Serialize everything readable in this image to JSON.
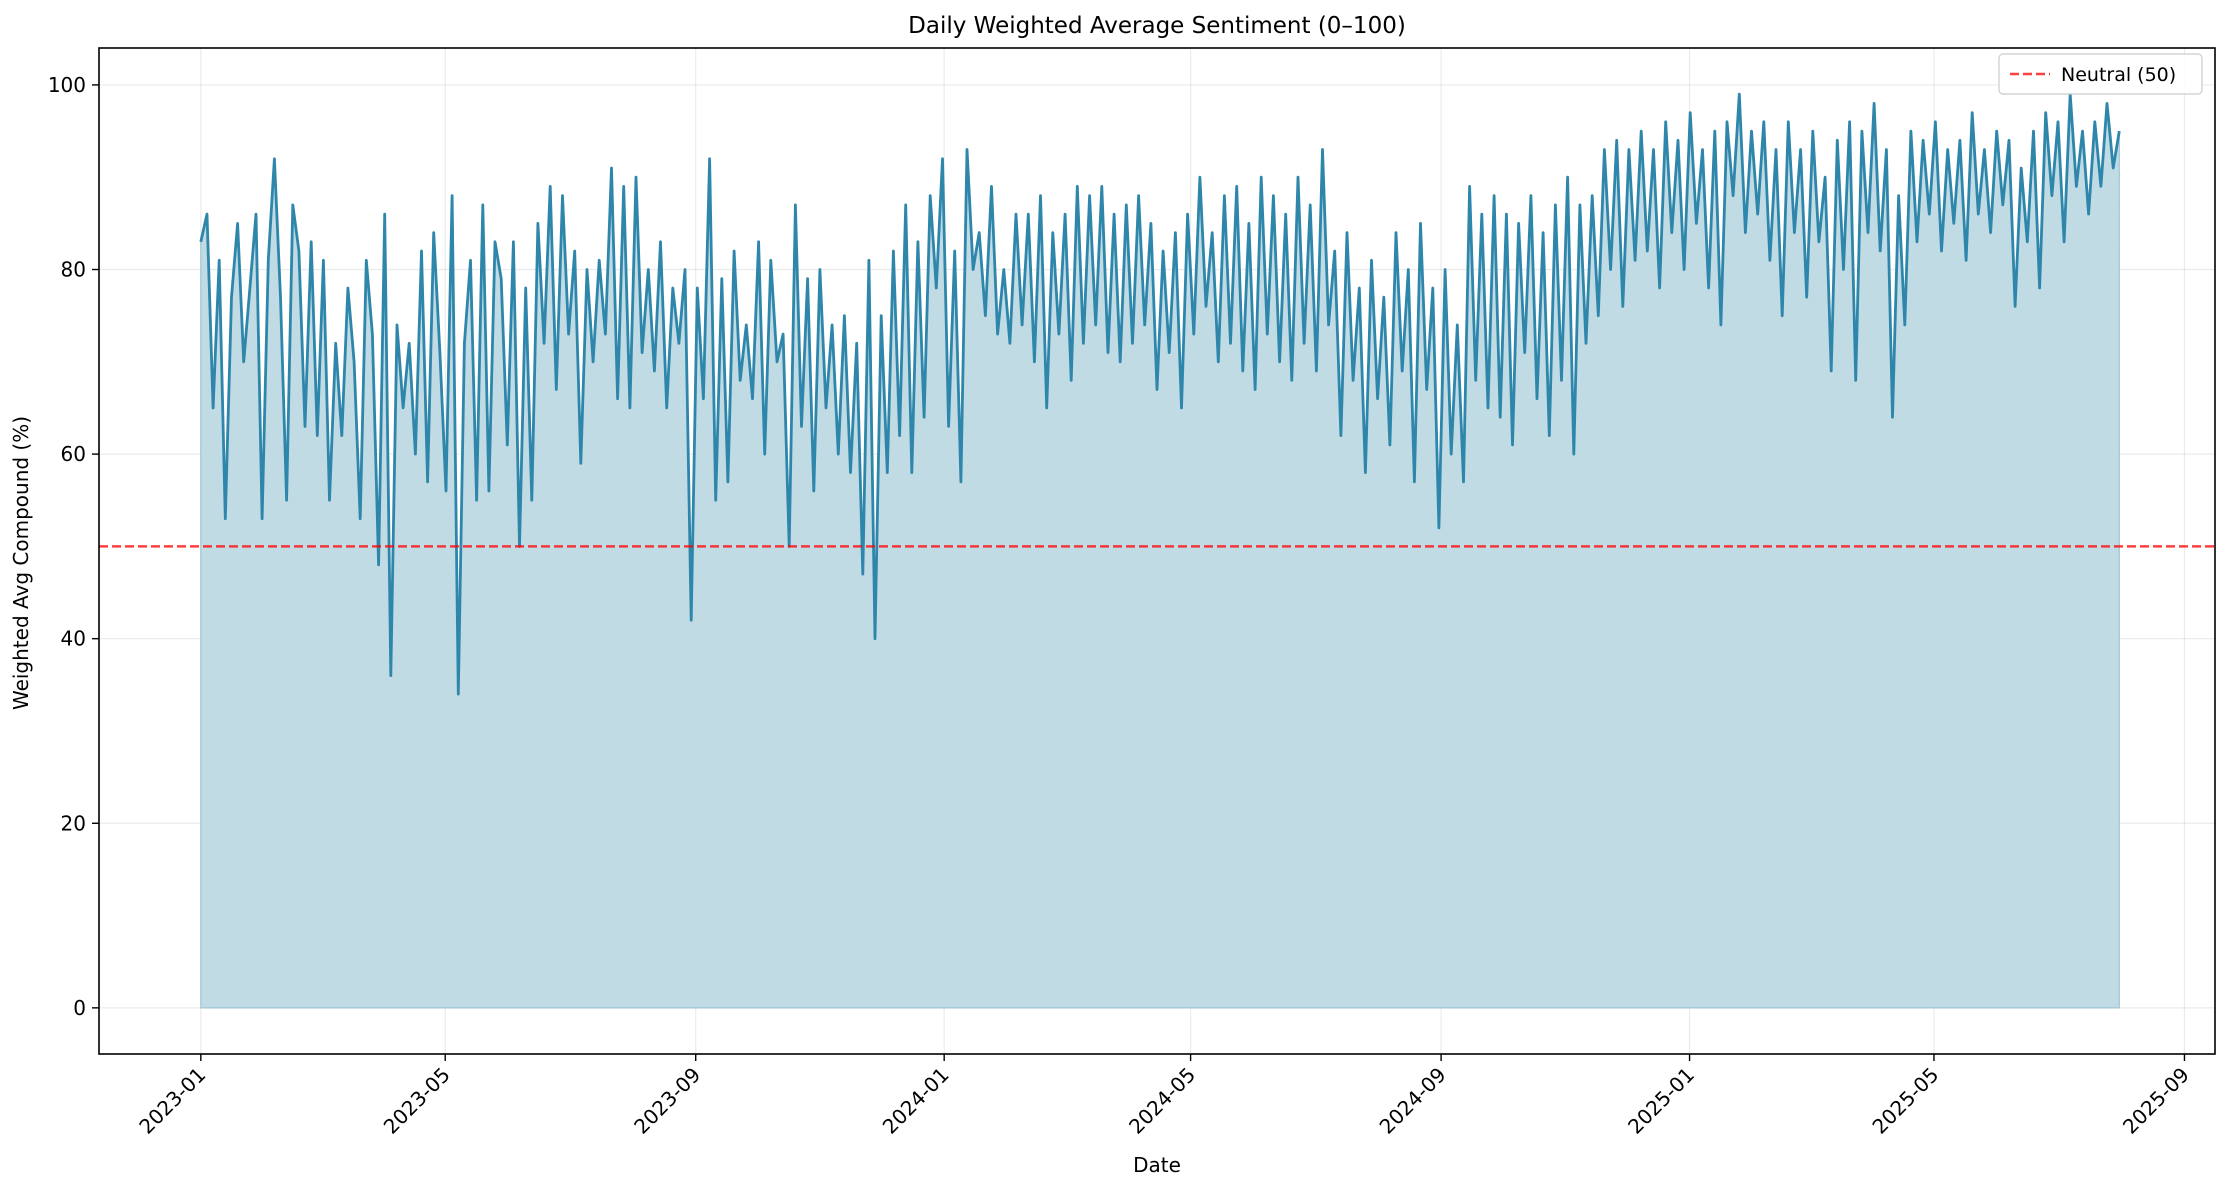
{
  "chart_data": {
    "type": "area",
    "title": "Daily Weighted Average Sentiment (0–100)",
    "xlabel": "Date",
    "ylabel": "Weighted Avg Compound (%)",
    "x_start": "2023-01-01",
    "x_end": "2025-07-31",
    "xlim": [
      "2022-11-12",
      "2025-09-16"
    ],
    "ylim": [
      -5,
      104
    ],
    "x_ticks": [
      "2023-01",
      "2023-05",
      "2023-09",
      "2024-01",
      "2024-05",
      "2024-09",
      "2025-01",
      "2025-05",
      "2025-09"
    ],
    "y_ticks": [
      0,
      20,
      40,
      60,
      80,
      100
    ],
    "grid": true,
    "reference_line": {
      "value": 50,
      "label": "Neutral (50)",
      "color": "#ff0000",
      "style": "dashed"
    },
    "legend_position": "top-right",
    "series": [
      {
        "name": "Weighted Avg Compound",
        "color": "#2e86ab",
        "fill_color": "#c1dbe5",
        "weekly_values": [
          83,
          86,
          65,
          81,
          53,
          77,
          85,
          70,
          78,
          86,
          53,
          81,
          92,
          77,
          55,
          87,
          82,
          63,
          83,
          62,
          81,
          55,
          72,
          62,
          78,
          70,
          53,
          81,
          73,
          48,
          86,
          36,
          74,
          65,
          72,
          60,
          82,
          57,
          84,
          71,
          56,
          88,
          34,
          72,
          81,
          55,
          87,
          56,
          83,
          79,
          61,
          83,
          50,
          78,
          55,
          85,
          72,
          89,
          67,
          88,
          73,
          82,
          59,
          80,
          70,
          81,
          73,
          91,
          66,
          89,
          65,
          90,
          71,
          80,
          69,
          83,
          65,
          78,
          72,
          80,
          42,
          78,
          66,
          92,
          55,
          79,
          57,
          82,
          68,
          74,
          66,
          83,
          60,
          81,
          70,
          73,
          50,
          87,
          63,
          79,
          56,
          80,
          65,
          74,
          60,
          75,
          58,
          72,
          47,
          81,
          40,
          75,
          58,
          82,
          62,
          87,
          58,
          83,
          64,
          88,
          78,
          92,
          63,
          82,
          57,
          93,
          80,
          84,
          75,
          89,
          73,
          80,
          72,
          86,
          74,
          86,
          70,
          88,
          65,
          84,
          73,
          86,
          68,
          89,
          72,
          88,
          74,
          89,
          71,
          86,
          70,
          87,
          72,
          88,
          74,
          85,
          67,
          82,
          71,
          84,
          65,
          86,
          73,
          90,
          76,
          84,
          70,
          88,
          72,
          89,
          69,
          85,
          67,
          90,
          73,
          88,
          70,
          86,
          68,
          90,
          72,
          87,
          69,
          93,
          74,
          82,
          62,
          84,
          68,
          78,
          58,
          81,
          66,
          77,
          61,
          84,
          69,
          80,
          57,
          85,
          67,
          78,
          52,
          80,
          60,
          74,
          57,
          89,
          68,
          86,
          65,
          88,
          64,
          86,
          61,
          85,
          71,
          88,
          66,
          84,
          62,
          87,
          68,
          90,
          60,
          87,
          72,
          88,
          75,
          93,
          80,
          94,
          76,
          93,
          81,
          95,
          82,
          93,
          78,
          96,
          84,
          94,
          80,
          97,
          85,
          93,
          78,
          95,
          74,
          96,
          88,
          99,
          84,
          95,
          86,
          96,
          81,
          93,
          75,
          96,
          84,
          93,
          77,
          95,
          83,
          90,
          69,
          94,
          80,
          96,
          68,
          95,
          84,
          98,
          82,
          93,
          64,
          88,
          74,
          95,
          83,
          94,
          86,
          96,
          82,
          93,
          85,
          94,
          81,
          97,
          86,
          93,
          84,
          95,
          87,
          94,
          76,
          91,
          83,
          95,
          78,
          97,
          88,
          96,
          83,
          99,
          89,
          95,
          86,
          96,
          89,
          98,
          91,
          95
        ]
      }
    ]
  }
}
